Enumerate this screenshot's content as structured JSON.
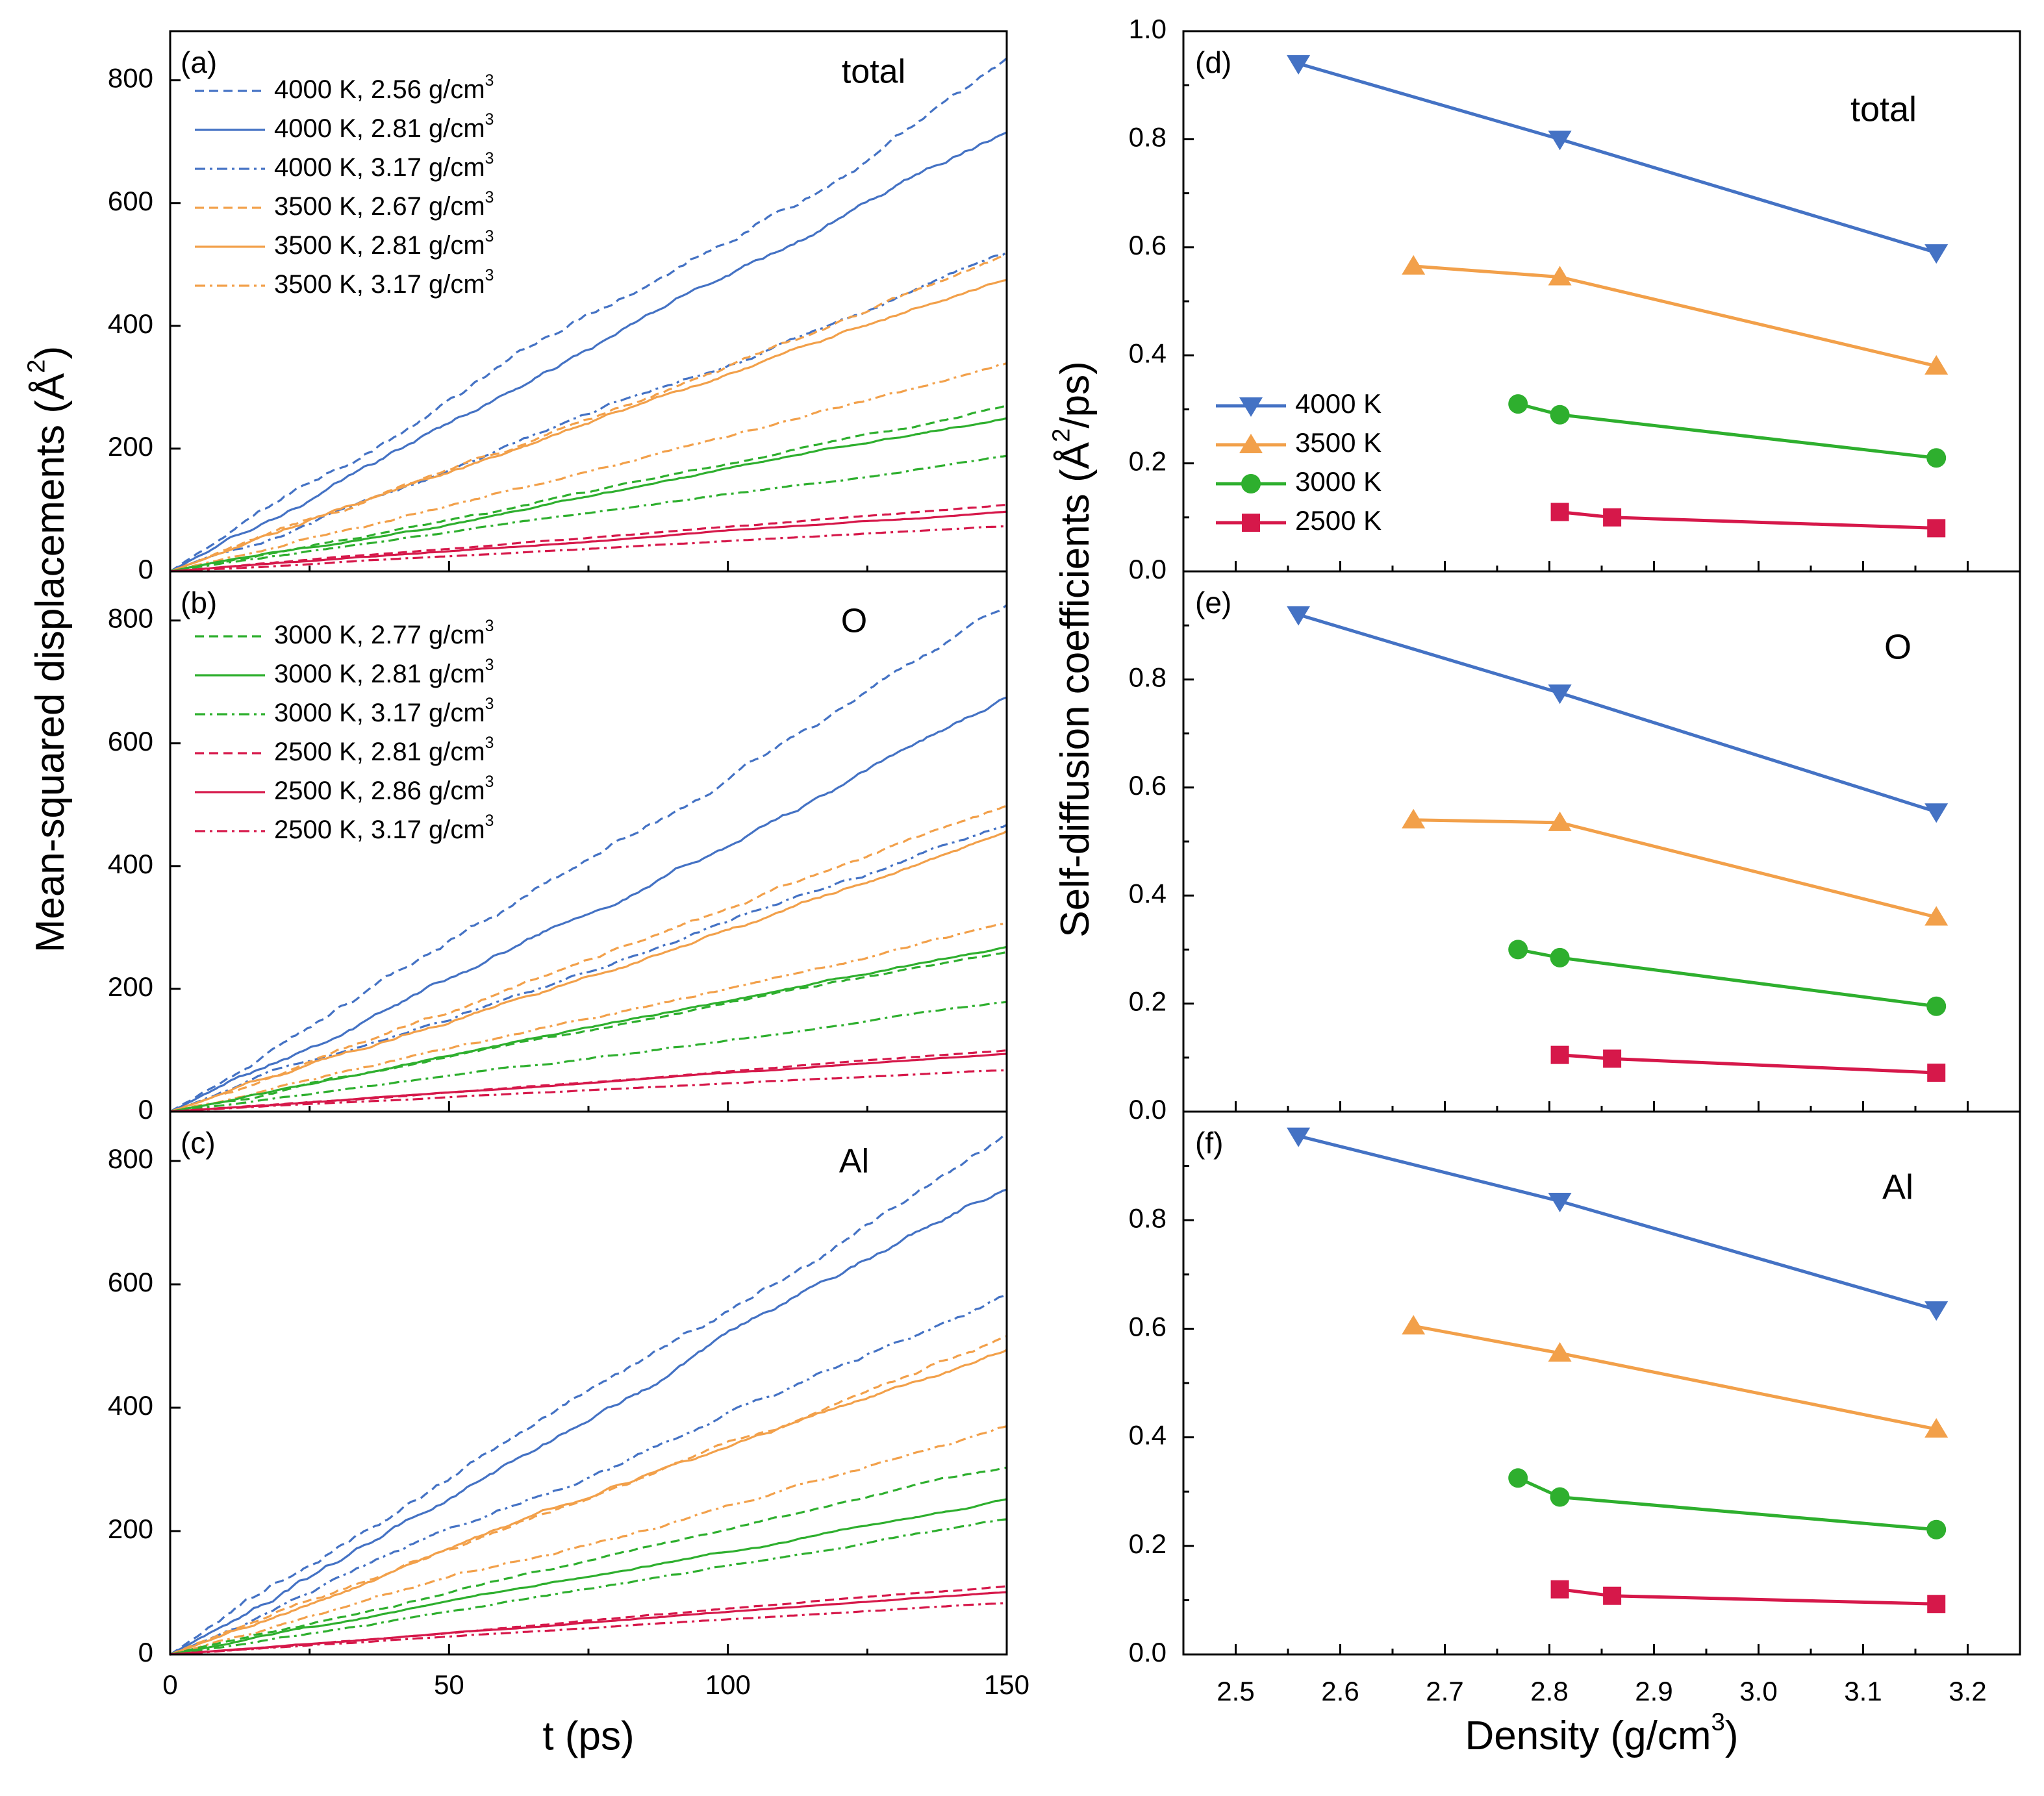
{
  "chart_data": [
    {
      "id": "a",
      "type": "line",
      "panel_label": "(a)",
      "title": "total",
      "xlim": [
        0,
        150
      ],
      "ylim": [
        0,
        880
      ],
      "xticks": [
        "0",
        "50",
        "100",
        "150"
      ],
      "yticks": [
        "0",
        "200",
        "400",
        "600",
        "800"
      ],
      "series": [
        {
          "name": "4000 K, 2.56 g/cm3",
          "temperature": "4000 K",
          "style": "dashed",
          "end_value": 835
        },
        {
          "name": "4000 K, 2.81 g/cm3",
          "temperature": "4000 K",
          "style": "solid",
          "end_value": 725
        },
        {
          "name": "4000 K, 3.17 g/cm3",
          "temperature": "4000 K",
          "style": "dashdot",
          "end_value": 525
        },
        {
          "name": "3500 K, 2.67 g/cm3",
          "temperature": "3500 K",
          "style": "dashed",
          "end_value": 505
        },
        {
          "name": "3500 K, 2.81 g/cm3",
          "temperature": "3500 K",
          "style": "solid",
          "end_value": 482
        },
        {
          "name": "3500 K, 3.17 g/cm3",
          "temperature": "3500 K",
          "style": "dashdot",
          "end_value": 335
        },
        {
          "name": "3000 K, 2.77 g/cm3",
          "temperature": "3000 K",
          "style": "dashed",
          "end_value": 275
        },
        {
          "name": "3000 K, 2.81 g/cm3",
          "temperature": "3000 K",
          "style": "solid",
          "end_value": 262
        },
        {
          "name": "3000 K, 3.17 g/cm3",
          "temperature": "3000 K",
          "style": "dashdot",
          "end_value": 193
        },
        {
          "name": "2500 K, 2.81 g/cm3",
          "temperature": "2500 K",
          "style": "dashed",
          "end_value": 102
        },
        {
          "name": "2500 K, 2.86 g/cm3",
          "temperature": "2500 K",
          "style": "solid",
          "end_value": 95
        },
        {
          "name": "2500 K, 3.17 g/cm3",
          "temperature": "2500 K",
          "style": "dashdot",
          "end_value": 72
        }
      ],
      "legend": {
        "entries": [
          {
            "label": "4000 K, 2.56 g/cm",
            "sup": "3",
            "temperature": "4000 K",
            "style": "dashed"
          },
          {
            "label": "4000 K, 2.81 g/cm",
            "sup": "3",
            "temperature": "4000 K",
            "style": "solid"
          },
          {
            "label": "4000 K, 3.17 g/cm",
            "sup": "3",
            "temperature": "4000 K",
            "style": "dashdot"
          },
          {
            "label": "3500 K, 2.67 g/cm",
            "sup": "3",
            "temperature": "3500 K",
            "style": "dashed"
          },
          {
            "label": "3500 K, 2.81 g/cm",
            "sup": "3",
            "temperature": "3500 K",
            "style": "solid"
          },
          {
            "label": "3500 K, 3.17 g/cm",
            "sup": "3",
            "temperature": "3500 K",
            "style": "dashdot"
          }
        ]
      }
    },
    {
      "id": "b",
      "type": "line",
      "panel_label": "(b)",
      "title": "O",
      "xlim": [
        0,
        150
      ],
      "ylim": [
        0,
        880
      ],
      "xticks": [
        "0",
        "50",
        "100",
        "150"
      ],
      "yticks": [
        "0",
        "200",
        "400",
        "600",
        "800"
      ],
      "series": [
        {
          "name": "4000 K, 2.56 g/cm3",
          "temperature": "4000 K",
          "style": "dashed",
          "end_value": 810
        },
        {
          "name": "4000 K, 2.81 g/cm3",
          "temperature": "4000 K",
          "style": "solid",
          "end_value": 697
        },
        {
          "name": "4000 K, 3.17 g/cm3",
          "temperature": "4000 K",
          "style": "dashdot",
          "end_value": 490
        },
        {
          "name": "3500 K, 2.67 g/cm3",
          "temperature": "3500 K",
          "style": "dashed",
          "end_value": 487
        },
        {
          "name": "3500 K, 2.81 g/cm3",
          "temperature": "3500 K",
          "style": "solid",
          "end_value": 470
        },
        {
          "name": "3500 K, 3.17 g/cm3",
          "temperature": "3500 K",
          "style": "dashdot",
          "end_value": 313
        },
        {
          "name": "3000 K, 2.77 g/cm3",
          "temperature": "3000 K",
          "style": "dashed",
          "end_value": 265
        },
        {
          "name": "3000 K, 2.81 g/cm3",
          "temperature": "3000 K",
          "style": "solid",
          "end_value": 262
        },
        {
          "name": "3000 K, 3.17 g/cm3",
          "temperature": "3000 K",
          "style": "dashdot",
          "end_value": 180
        },
        {
          "name": "2500 K, 2.81 g/cm3",
          "temperature": "2500 K",
          "style": "dashed",
          "end_value": 98
        },
        {
          "name": "2500 K, 2.86 g/cm3",
          "temperature": "2500 K",
          "style": "solid",
          "end_value": 90
        },
        {
          "name": "2500 K, 3.17 g/cm3",
          "temperature": "2500 K",
          "style": "dashdot",
          "end_value": 66
        }
      ],
      "legend": {
        "entries": [
          {
            "label": "3000 K, 2.77 g/cm",
            "sup": "3",
            "temperature": "3000 K",
            "style": "dashed"
          },
          {
            "label": "3000 K, 2.81 g/cm",
            "sup": "3",
            "temperature": "3000 K",
            "style": "solid"
          },
          {
            "label": "3000 K, 3.17 g/cm",
            "sup": "3",
            "temperature": "3000 K",
            "style": "dashdot"
          },
          {
            "label": "2500 K, 2.81 g/cm",
            "sup": "3",
            "temperature": "2500 K",
            "style": "dashed"
          },
          {
            "label": "2500 K, 2.86 g/cm",
            "sup": "3",
            "temperature": "2500 K",
            "style": "solid"
          },
          {
            "label": "2500 K, 3.17 g/cm",
            "sup": "3",
            "temperature": "2500 K",
            "style": "dashdot"
          }
        ]
      }
    },
    {
      "id": "c",
      "type": "line",
      "panel_label": "(c)",
      "title": "Al",
      "xlim": [
        0,
        150
      ],
      "ylim": [
        0,
        880
      ],
      "xticks": [
        "0",
        "50",
        "100",
        "150"
      ],
      "yticks": [
        "0",
        "200",
        "400",
        "600",
        "800"
      ],
      "series": [
        {
          "name": "4000 K, 2.56 g/cm3",
          "temperature": "4000 K",
          "style": "dashed",
          "end_value": 865
        },
        {
          "name": "4000 K, 2.81 g/cm3",
          "temperature": "4000 K",
          "style": "solid",
          "end_value": 760
        },
        {
          "name": "4000 K, 3.17 g/cm3",
          "temperature": "4000 K",
          "style": "dashdot",
          "end_value": 580
        },
        {
          "name": "3500 K, 2.67 g/cm3",
          "temperature": "3500 K",
          "style": "dashed",
          "end_value": 520
        },
        {
          "name": "3500 K, 2.81 g/cm3",
          "temperature": "3500 K",
          "style": "solid",
          "end_value": 502
        },
        {
          "name": "3500 K, 3.17 g/cm3",
          "temperature": "3500 K",
          "style": "dashdot",
          "end_value": 368
        },
        {
          "name": "3000 K, 2.77 g/cm3",
          "temperature": "3000 K",
          "style": "dashed",
          "end_value": 295
        },
        {
          "name": "3000 K, 2.81 g/cm3",
          "temperature": "3000 K",
          "style": "solid",
          "end_value": 258
        },
        {
          "name": "3000 K, 3.17 g/cm3",
          "temperature": "3000 K",
          "style": "dashdot",
          "end_value": 212
        },
        {
          "name": "2500 K, 2.81 g/cm3",
          "temperature": "2500 K",
          "style": "dashed",
          "end_value": 108
        },
        {
          "name": "2500 K, 2.86 g/cm3",
          "temperature": "2500 K",
          "style": "solid",
          "end_value": 100
        },
        {
          "name": "2500 K, 3.17 g/cm3",
          "temperature": "2500 K",
          "style": "dashdot",
          "end_value": 82
        }
      ]
    },
    {
      "id": "d",
      "type": "line",
      "panel_label": "(d)",
      "title": "total",
      "xlim": [
        2.45,
        3.25
      ],
      "ylim": [
        0,
        1.0
      ],
      "xticks": [
        "2.5",
        "2.6",
        "2.7",
        "2.8",
        "2.9",
        "3.0",
        "3.1",
        "3.2"
      ],
      "yticks": [
        "0.0",
        "0.2",
        "0.4",
        "0.6",
        "0.8",
        "1.0"
      ],
      "series": [
        {
          "name": "4000 K",
          "marker": "triangle-down",
          "x": [
            2.56,
            2.81,
            3.17
          ],
          "y": [
            0.94,
            0.8,
            0.59
          ]
        },
        {
          "name": "3500 K",
          "marker": "triangle-up",
          "x": [
            2.67,
            2.81,
            3.17
          ],
          "y": [
            0.565,
            0.545,
            0.38
          ]
        },
        {
          "name": "3000 K",
          "marker": "circle",
          "x": [
            2.77,
            2.81,
            3.17
          ],
          "y": [
            0.31,
            0.29,
            0.21
          ]
        },
        {
          "name": "2500 K",
          "marker": "square",
          "x": [
            2.81,
            2.86,
            3.17
          ],
          "y": [
            0.11,
            0.1,
            0.08
          ]
        }
      ],
      "legend": {
        "entries": [
          {
            "label": "4000 K",
            "marker": "triangle-down"
          },
          {
            "label": "3500 K",
            "marker": "triangle-up"
          },
          {
            "label": "3000 K",
            "marker": "circle"
          },
          {
            "label": "2500 K",
            "marker": "square"
          }
        ]
      }
    },
    {
      "id": "e",
      "type": "line",
      "panel_label": "(e)",
      "title": "O",
      "xlim": [
        2.45,
        3.25
      ],
      "ylim": [
        0,
        1.0
      ],
      "xticks": [
        "2.5",
        "2.6",
        "2.7",
        "2.8",
        "2.9",
        "3.0",
        "3.1",
        "3.2"
      ],
      "yticks": [
        "0.0",
        "0.2",
        "0.4",
        "0.6",
        "0.8"
      ],
      "series": [
        {
          "name": "4000 K",
          "marker": "triangle-down",
          "x": [
            2.56,
            2.81,
            3.17
          ],
          "y": [
            0.92,
            0.775,
            0.555
          ]
        },
        {
          "name": "3500 K",
          "marker": "triangle-up",
          "x": [
            2.67,
            2.81,
            3.17
          ],
          "y": [
            0.54,
            0.535,
            0.36
          ]
        },
        {
          "name": "3000 K",
          "marker": "circle",
          "x": [
            2.77,
            2.81,
            3.17
          ],
          "y": [
            0.3,
            0.285,
            0.195
          ]
        },
        {
          "name": "2500 K",
          "marker": "square",
          "x": [
            2.81,
            2.86,
            3.17
          ],
          "y": [
            0.105,
            0.098,
            0.072
          ]
        }
      ]
    },
    {
      "id": "f",
      "type": "line",
      "panel_label": "(f)",
      "title": "Al",
      "xlim": [
        2.45,
        3.25
      ],
      "ylim": [
        0,
        1.0
      ],
      "xticks": [
        "2.5",
        "2.6",
        "2.7",
        "2.8",
        "2.9",
        "3.0",
        "3.1",
        "3.2"
      ],
      "yticks": [
        "0.0",
        "0.2",
        "0.4",
        "0.6",
        "0.8"
      ],
      "series": [
        {
          "name": "4000 K",
          "marker": "triangle-down",
          "x": [
            2.56,
            2.81,
            3.17
          ],
          "y": [
            0.955,
            0.835,
            0.635
          ]
        },
        {
          "name": "3500 K",
          "marker": "triangle-up",
          "x": [
            2.67,
            2.81,
            3.17
          ],
          "y": [
            0.605,
            0.555,
            0.415
          ]
        },
        {
          "name": "3000 K",
          "marker": "circle",
          "x": [
            2.77,
            2.81,
            3.17
          ],
          "y": [
            0.325,
            0.29,
            0.23
          ]
        },
        {
          "name": "2500 K",
          "marker": "square",
          "x": [
            2.81,
            2.86,
            3.17
          ],
          "y": [
            0.12,
            0.108,
            0.093
          ]
        }
      ]
    }
  ],
  "left_axes": {
    "xlabel": "t (ps)",
    "ylabel": {
      "text": "Mean-squared displacements (Å",
      "sup": "2",
      "tail": ")"
    }
  },
  "right_axes": {
    "xlabel": {
      "text": "Density (g/cm",
      "sup": "3",
      "tail": ")"
    },
    "ylabel": {
      "text": "Self-diffusion coefficients (Å",
      "sup": "2",
      "tail": "/ps)"
    }
  },
  "colors": {
    "4000 K": "#4472C4",
    "3500 K": "#F2A04A",
    "3000 K": "#2EAF2E",
    "2500 K": "#D6184A",
    "axis": "#000000"
  }
}
